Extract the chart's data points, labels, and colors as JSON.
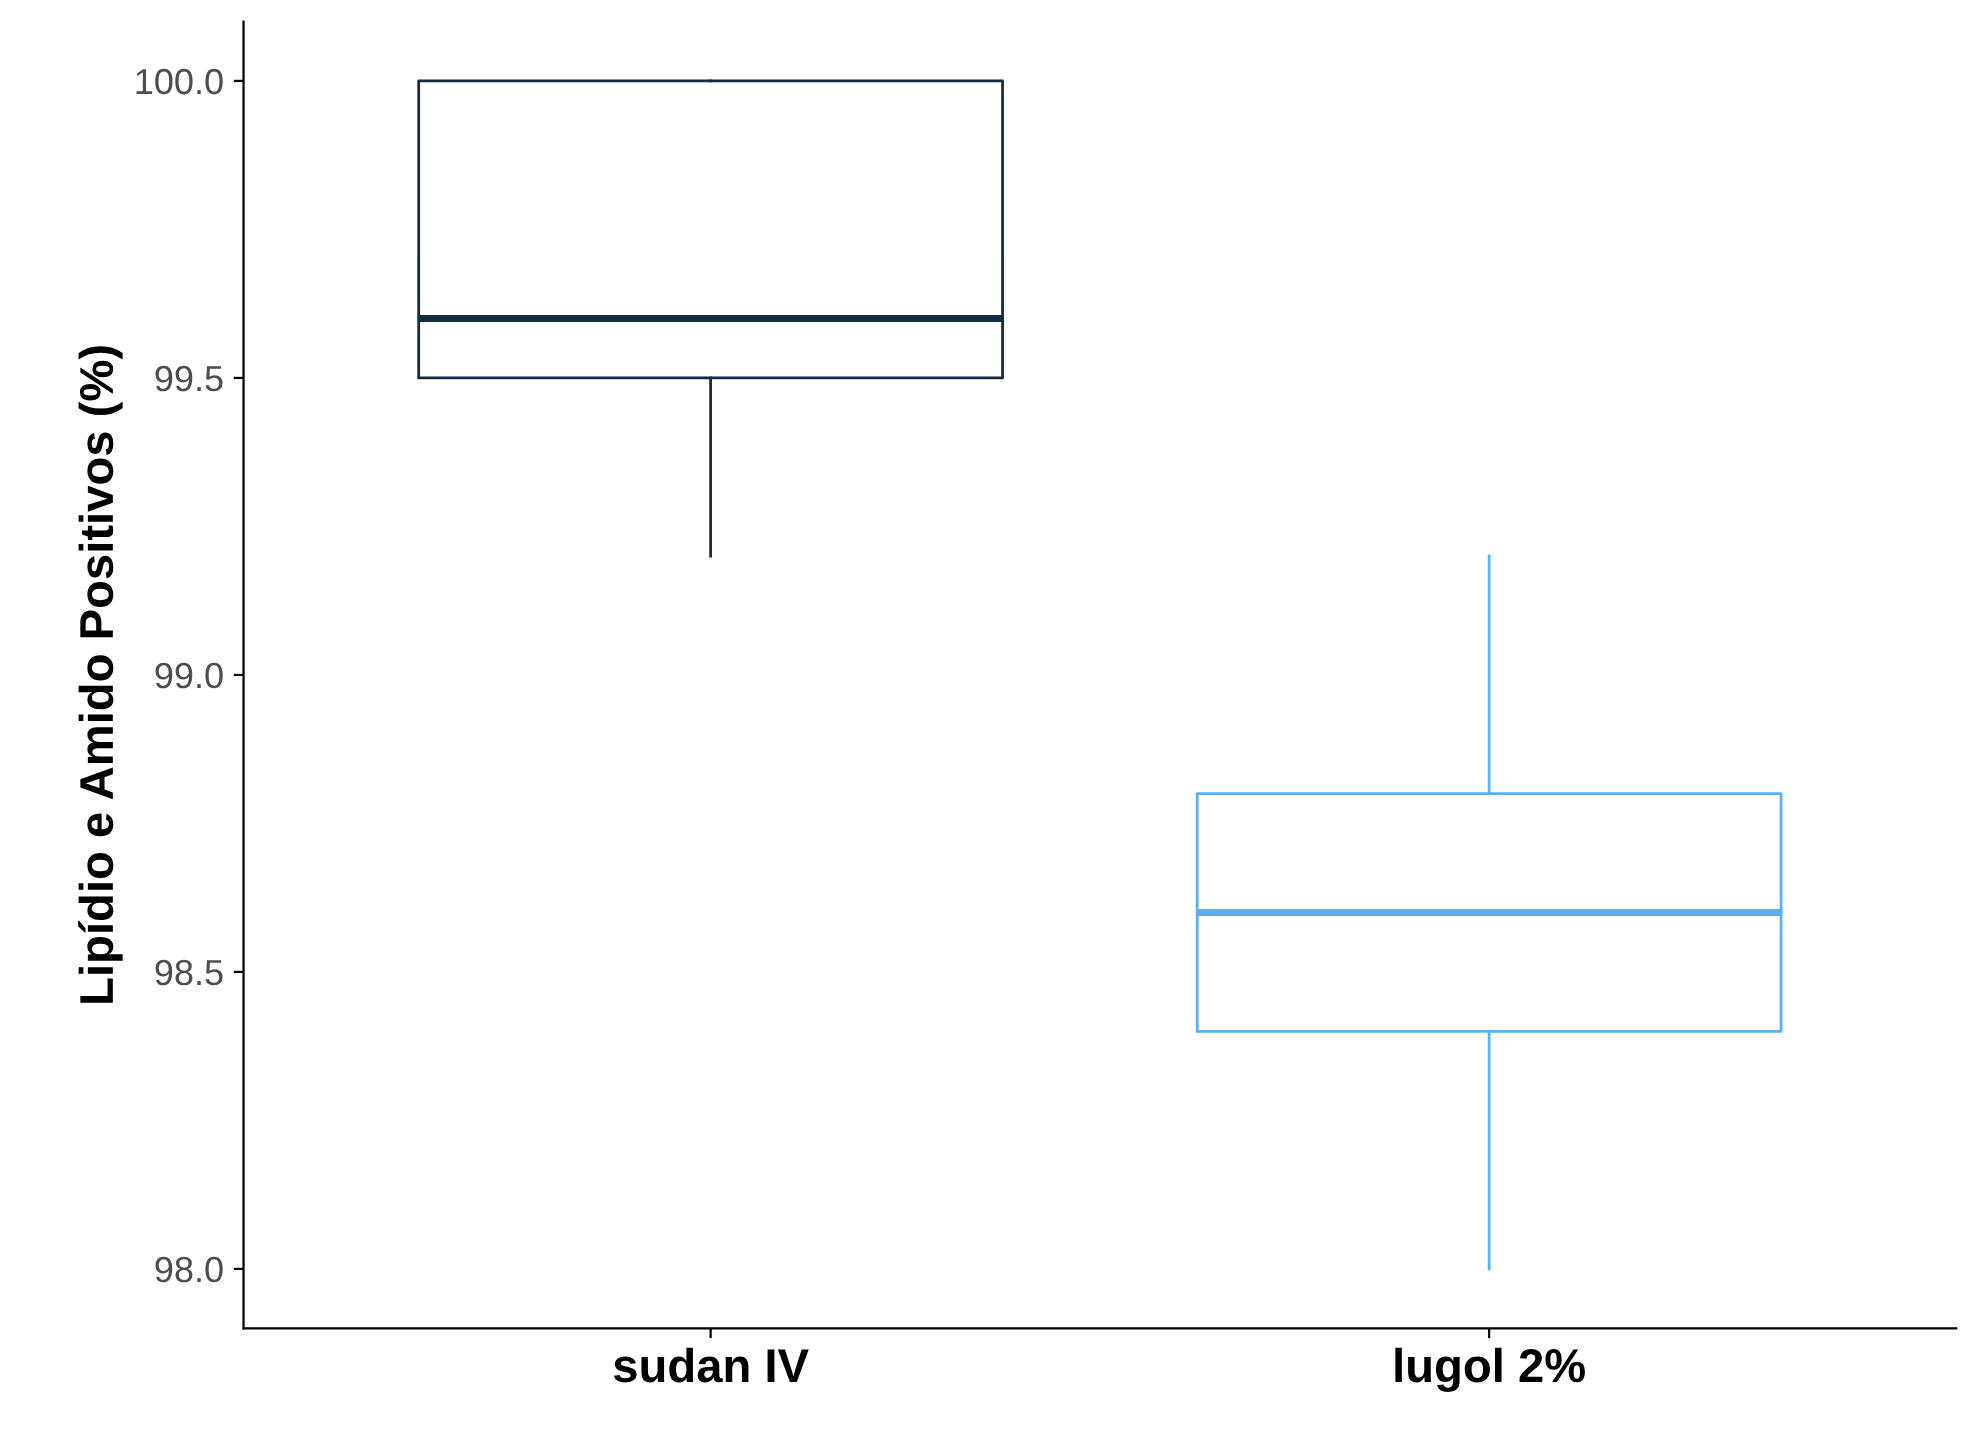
{
  "chart_data": {
    "type": "box",
    "ylabel": "Lipídio e Amido Positivos (%)",
    "categories": [
      "sudan IV",
      "lugol 2%"
    ],
    "boxes": [
      {
        "low": 99.2,
        "q1": 99.5,
        "median": 99.6,
        "q3": 100.0,
        "high": 100.0
      },
      {
        "low": 98.0,
        "q1": 98.4,
        "median": 98.6,
        "q3": 98.8,
        "high": 99.2
      }
    ],
    "colors": [
      "#132b43",
      "#56b1f7"
    ],
    "ylim": [
      97.9,
      100.1
    ],
    "yticks": [
      {
        "value": 98.0,
        "label": "98.0"
      },
      {
        "value": 98.5,
        "label": "98.5"
      },
      {
        "value": 99.0,
        "label": "99.0"
      },
      {
        "value": 99.5,
        "label": "99.5"
      },
      {
        "value": 100.0,
        "label": "100.0"
      }
    ],
    "grid": false,
    "legend": false
  }
}
